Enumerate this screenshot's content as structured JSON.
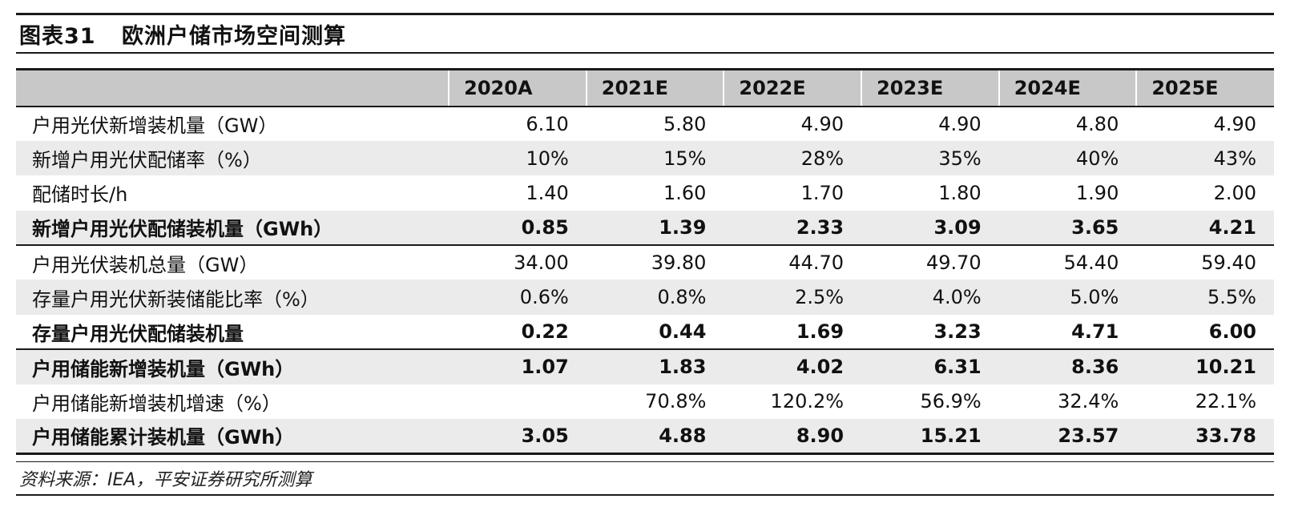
{
  "figure": {
    "number": "图表31",
    "title": "欧洲户储市场空间测算"
  },
  "table": {
    "columns": [
      "",
      "2020A",
      "2021E",
      "2022E",
      "2023E",
      "2024E",
      "2025E"
    ],
    "rows": [
      {
        "label": "户用光伏新增装机量（GW）",
        "values": [
          "6.10",
          "5.80",
          "4.90",
          "4.90",
          "4.80",
          "4.90"
        ]
      },
      {
        "label": "新增户用光伏配储率（%）",
        "values": [
          "10%",
          "15%",
          "28%",
          "35%",
          "40%",
          "43%"
        ]
      },
      {
        "label": "配储时长/h",
        "values": [
          "1.40",
          "1.60",
          "1.70",
          "1.80",
          "1.90",
          "2.00"
        ]
      },
      {
        "label": "新增户用光伏配储装机量（GWh）",
        "values": [
          "0.85",
          "1.39",
          "2.33",
          "3.09",
          "3.65",
          "4.21"
        ]
      },
      {
        "label": "户用光伏装机总量（GW）",
        "values": [
          "34.00",
          "39.80",
          "44.70",
          "49.70",
          "54.40",
          "59.40"
        ]
      },
      {
        "label": "存量户用光伏新装储能比率（%）",
        "values": [
          "0.6%",
          "0.8%",
          "2.5%",
          "4.0%",
          "5.0%",
          "5.5%"
        ]
      },
      {
        "label": "存量户用光伏配储装机量",
        "values": [
          "0.22",
          "0.44",
          "1.69",
          "3.23",
          "4.71",
          "6.00"
        ]
      },
      {
        "label": "户用储能新增装机量（GWh）",
        "values": [
          "1.07",
          "1.83",
          "4.02",
          "6.31",
          "8.36",
          "10.21"
        ]
      },
      {
        "label": "户用储能新增装机增速（%）",
        "values": [
          "",
          "70.8%",
          "120.2%",
          "56.9%",
          "32.4%",
          "22.1%"
        ]
      },
      {
        "label": "户用储能累计装机量（GWh）",
        "values": [
          "3.05",
          "4.88",
          "8.90",
          "15.21",
          "23.57",
          "33.78"
        ]
      }
    ]
  },
  "source": "资料来源：IEA，平安证券研究所测算"
}
